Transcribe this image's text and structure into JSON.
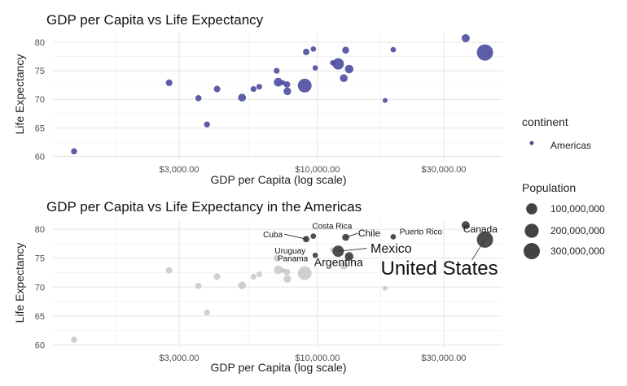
{
  "chart_data": [
    {
      "type": "scatter",
      "title": "GDP per Capita vs Life Expectancy",
      "xlabel": "GDP per Capita (log scale)",
      "ylabel": "Life Expectancy",
      "x_scale": "log",
      "x_ticks": [
        3000,
        10000,
        30000
      ],
      "x_tick_labels": [
        "$3,000.00",
        "$10,000.00",
        "$30,000.00"
      ],
      "y_ticks": [
        60,
        65,
        70,
        75,
        80
      ],
      "y_tick_labels": [
        "60",
        "65",
        "70",
        "75",
        "80"
      ],
      "xlim": [
        1000,
        50000
      ],
      "ylim": [
        59.5,
        81.7
      ],
      "grid": true,
      "color": "#4b4ba0",
      "points": [
        {
          "x": 1202,
          "y": 60.9,
          "pop": 8.5
        },
        {
          "x": 2749,
          "y": 72.9,
          "pop": 12.6
        },
        {
          "x": 3548,
          "y": 70.2,
          "pop": 9.3
        },
        {
          "x": 3822,
          "y": 65.6,
          "pop": 7.5
        },
        {
          "x": 4173,
          "y": 71.8,
          "pop": 12.6
        },
        {
          "x": 5186,
          "y": 70.3,
          "pop": 28.7
        },
        {
          "x": 5728,
          "y": 71.8,
          "pop": 6.7
        },
        {
          "x": 6025,
          "y": 72.2,
          "pop": 6.0
        },
        {
          "x": 7008,
          "y": 75.0,
          "pop": 6.9
        },
        {
          "x": 7107,
          "y": 73.0,
          "pop": 44.2
        },
        {
          "x": 7409,
          "y": 72.9,
          "pop": 1.1
        },
        {
          "x": 7670,
          "y": 72.6,
          "pop": 11.3
        },
        {
          "x": 7693,
          "y": 71.4,
          "pop": 26.0
        },
        {
          "x": 8948,
          "y": 72.4,
          "pop": 190.0
        },
        {
          "x": 9065,
          "y": 78.3,
          "pop": 11.4
        },
        {
          "x": 9809,
          "y": 75.5,
          "pop": 3.2
        },
        {
          "x": 9645,
          "y": 78.8,
          "pop": 4.1
        },
        {
          "x": 11416,
          "y": 76.4,
          "pop": 3.4
        },
        {
          "x": 12570,
          "y": 73.7,
          "pop": 28.0
        },
        {
          "x": 12779,
          "y": 78.6,
          "pop": 16.3
        },
        {
          "x": 11978,
          "y": 76.2,
          "pop": 108.7
        },
        {
          "x": 13172,
          "y": 75.3,
          "pop": 40.3
        },
        {
          "x": 18009,
          "y": 69.8,
          "pop": 1.1
        },
        {
          "x": 19329,
          "y": 78.7,
          "pop": 3.9
        },
        {
          "x": 36319,
          "y": 80.7,
          "pop": 33.4
        },
        {
          "x": 42952,
          "y": 78.2,
          "pop": 301.1
        }
      ],
      "legend": {
        "title": "continent",
        "items": [
          "Americas"
        ],
        "size_title": "Population",
        "size_labels": [
          "100,000,000",
          "200,000,000",
          "300,000,000"
        ],
        "size_values": [
          100,
          200,
          300
        ]
      }
    },
    {
      "type": "scatter",
      "title": "GDP per Capita vs Life Expectancy in the Americas",
      "xlabel": "GDP per Capita (log scale)",
      "ylabel": "Life Expectancy",
      "x_scale": "log",
      "x_ticks": [
        3000,
        10000,
        30000
      ],
      "x_tick_labels": [
        "$3,000.00",
        "$10,000.00",
        "$30,000.00"
      ],
      "y_ticks": [
        60,
        65,
        70,
        75,
        80
      ],
      "y_tick_labels": [
        "60",
        "65",
        "70",
        "75",
        "80"
      ],
      "xlim": [
        1000,
        50000
      ],
      "ylim": [
        59.5,
        81.7
      ],
      "grid": true,
      "highlight_color": "#2f2f2f",
      "muted_color": "#c8c8c8",
      "points": [
        {
          "x": 1202,
          "y": 60.9,
          "pop": 8.5,
          "hl": false
        },
        {
          "x": 2749,
          "y": 72.9,
          "pop": 12.6,
          "hl": false
        },
        {
          "x": 3548,
          "y": 70.2,
          "pop": 9.3,
          "hl": false
        },
        {
          "x": 3822,
          "y": 65.6,
          "pop": 7.5,
          "hl": false
        },
        {
          "x": 4173,
          "y": 71.8,
          "pop": 12.6,
          "hl": false
        },
        {
          "x": 5186,
          "y": 70.3,
          "pop": 28.7,
          "hl": false
        },
        {
          "x": 5728,
          "y": 71.8,
          "pop": 6.7,
          "hl": false
        },
        {
          "x": 6025,
          "y": 72.2,
          "pop": 6.0,
          "hl": false
        },
        {
          "x": 7008,
          "y": 75.0,
          "pop": 6.9,
          "hl": false
        },
        {
          "x": 7107,
          "y": 73.0,
          "pop": 44.2,
          "hl": false
        },
        {
          "x": 7409,
          "y": 72.9,
          "pop": 1.1,
          "hl": false
        },
        {
          "x": 7670,
          "y": 72.6,
          "pop": 11.3,
          "hl": false
        },
        {
          "x": 7693,
          "y": 71.4,
          "pop": 26.0,
          "hl": false
        },
        {
          "x": 8948,
          "y": 72.4,
          "pop": 190.0,
          "hl": false
        },
        {
          "x": 9065,
          "y": 78.3,
          "pop": 11.4,
          "hl": true
        },
        {
          "x": 9809,
          "y": 75.5,
          "pop": 3.2,
          "hl": true
        },
        {
          "x": 9645,
          "y": 78.8,
          "pop": 4.1,
          "hl": true
        },
        {
          "x": 11416,
          "y": 76.4,
          "pop": 3.4,
          "hl": false
        },
        {
          "x": 12570,
          "y": 73.7,
          "pop": 28.0,
          "hl": false
        },
        {
          "x": 12779,
          "y": 78.6,
          "pop": 16.3,
          "hl": true
        },
        {
          "x": 11978,
          "y": 76.2,
          "pop": 108.7,
          "hl": true
        },
        {
          "x": 13172,
          "y": 75.3,
          "pop": 40.3,
          "hl": true
        },
        {
          "x": 18009,
          "y": 69.8,
          "pop": 1.1,
          "hl": false
        },
        {
          "x": 19329,
          "y": 78.7,
          "pop": 3.9,
          "hl": true
        },
        {
          "x": 36319,
          "y": 80.7,
          "pop": 33.4,
          "hl": true
        },
        {
          "x": 42952,
          "y": 78.2,
          "pop": 301.1,
          "hl": true
        }
      ],
      "annotations": [
        {
          "label": "Cuba",
          "x": 9065,
          "y": 78.3
        },
        {
          "label": "Costa Rica",
          "x": 9645,
          "y": 78.8
        },
        {
          "label": "Chile",
          "x": 12779,
          "y": 78.6
        },
        {
          "label": "Puerto Rico",
          "x": 19329,
          "y": 78.7
        },
        {
          "label": "Canada",
          "x": 36319,
          "y": 80.7
        },
        {
          "label": "Uruguay",
          "x": 9809,
          "y": 75.5
        },
        {
          "label": "Mexico",
          "x": 11978,
          "y": 76.2
        },
        {
          "label": "Panama",
          "x": 7409,
          "y": 72.9
        },
        {
          "label": "Argentina",
          "x": 13172,
          "y": 75.3
        },
        {
          "label": "United States",
          "x": 42952,
          "y": 78.2
        }
      ]
    }
  ]
}
